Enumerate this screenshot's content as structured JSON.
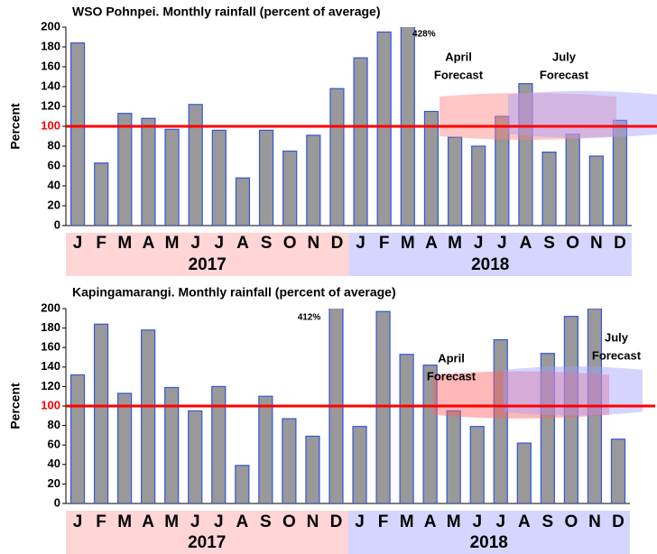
{
  "chart_data": [
    {
      "type": "bar",
      "title": "WSO Pohnpei.  Monthly rainfall (percent of average)",
      "ylabel": "Percent",
      "categories": [
        "J",
        "F",
        "M",
        "A",
        "M",
        "J",
        "J",
        "A",
        "S",
        "O",
        "N",
        "D",
        "J",
        "F",
        "M",
        "A",
        "M",
        "J",
        "J",
        "A",
        "S",
        "O",
        "N",
        "D"
      ],
      "groups": [
        {
          "label": "2017",
          "color": "#ffd5d5"
        },
        {
          "label": "2018",
          "color": "#d5d5ff"
        }
      ],
      "values": [
        184,
        63,
        113,
        108,
        97,
        122,
        96,
        48,
        96,
        75,
        91,
        138,
        169,
        195,
        428,
        115,
        89,
        80,
        110,
        143,
        74,
        92,
        70,
        106
      ],
      "value_labels": [
        null,
        null,
        null,
        null,
        null,
        null,
        null,
        null,
        null,
        null,
        null,
        null,
        null,
        null,
        "428%",
        null,
        null,
        null,
        null,
        null,
        null,
        null,
        null,
        null
      ],
      "color": "#999999",
      "edgecolor": "#3355dd",
      "ylim": [
        0,
        200
      ],
      "yticks": [
        0,
        20,
        40,
        60,
        80,
        100,
        120,
        140,
        160,
        180,
        200
      ],
      "reference_line": {
        "value": 100,
        "color": "#ff0000"
      },
      "forecasts": [
        {
          "label": [
            "April",
            "Forecast"
          ],
          "range": [
            90,
            130
          ],
          "color": "#ff8080"
        },
        {
          "label": [
            "July",
            "Forecast"
          ],
          "range": [
            92,
            132
          ],
          "color": "#a0a0ff"
        }
      ]
    },
    {
      "type": "bar",
      "title": "Kapingamarangi.  Monthly rainfall (percent of average)",
      "ylabel": "Percent",
      "categories": [
        "J",
        "F",
        "M",
        "A",
        "M",
        "J",
        "J",
        "A",
        "S",
        "O",
        "N",
        "D",
        "J",
        "F",
        "M",
        "A",
        "M",
        "J",
        "J",
        "A",
        "S",
        "O",
        "N",
        "D"
      ],
      "groups": [
        {
          "label": "2017",
          "color": "#ffd5d5"
        },
        {
          "label": "2018",
          "color": "#d5d5ff"
        }
      ],
      "values": [
        132,
        184,
        113,
        178,
        119,
        95,
        120,
        39,
        110,
        87,
        69,
        412,
        79,
        197,
        153,
        142,
        95,
        79,
        168,
        62,
        154,
        192,
        200,
        66
      ],
      "value_labels": [
        null,
        null,
        null,
        null,
        null,
        null,
        null,
        null,
        null,
        null,
        null,
        "412%",
        null,
        null,
        null,
        null,
        null,
        null,
        null,
        null,
        null,
        null,
        null,
        null
      ],
      "color": "#999999",
      "edgecolor": "#3355dd",
      "ylim": [
        0,
        200
      ],
      "yticks": [
        0,
        20,
        40,
        60,
        80,
        100,
        120,
        140,
        160,
        180,
        200
      ],
      "reference_line": {
        "value": 100,
        "color": "#ff0000"
      },
      "forecasts": [
        {
          "label": [
            "April",
            "Forecast"
          ],
          "range": [
            91,
            132
          ],
          "color": "#ff6060"
        },
        {
          "label": [
            "July",
            "Forecast"
          ],
          "range": [
            94,
            137
          ],
          "color": "#a0a0ff"
        }
      ]
    }
  ]
}
